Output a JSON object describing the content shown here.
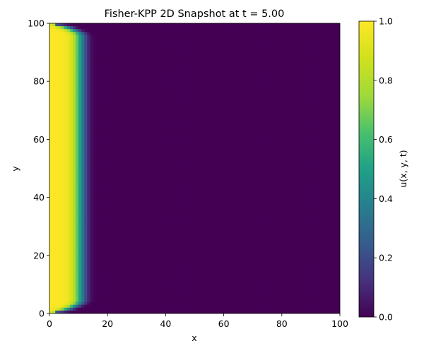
{
  "chart_data": {
    "type": "heatmap",
    "title": "Fisher-KPP 2D Snapshot at t = 5.00",
    "xlabel": "x",
    "ylabel": "y",
    "xlim": [
      0,
      100
    ],
    "ylim": [
      0,
      100
    ],
    "x_ticks": [
      "0",
      "20",
      "40",
      "60",
      "80",
      "100"
    ],
    "y_ticks": [
      "0",
      "20",
      "40",
      "60",
      "80",
      "100"
    ],
    "x_tick_values": [
      0,
      20,
      40,
      60,
      80,
      100
    ],
    "y_tick_values": [
      0,
      20,
      40,
      60,
      80,
      100
    ],
    "colormap": "viridis",
    "colorbar": {
      "label": "u(x, y, t)",
      "range": [
        0.0,
        1.0
      ],
      "ticks": [
        "0.0",
        "0.2",
        "0.4",
        "0.6",
        "0.8",
        "1.0"
      ],
      "tick_values": [
        0.0,
        0.2,
        0.4,
        0.6,
        0.8,
        1.0
      ]
    },
    "grid": false,
    "field": {
      "description_of_values": "u ≈ 1 for x < ~8, smooth front to u ≈ 0 by x ≈ 14; front slightly receded near y = 0 and y = 100 edges",
      "x_profile": [
        [
          0,
          1.0
        ],
        [
          2,
          1.0
        ],
        [
          4,
          0.99
        ],
        [
          6,
          0.97
        ],
        [
          7,
          0.93
        ],
        [
          8,
          0.86
        ],
        [
          9,
          0.74
        ],
        [
          10,
          0.58
        ],
        [
          11,
          0.42
        ],
        [
          12,
          0.27
        ],
        [
          13,
          0.14
        ],
        [
          14,
          0.05
        ],
        [
          15,
          0.01
        ],
        [
          16,
          0.0
        ],
        [
          100,
          0.0
        ]
      ],
      "edge_profile": [
        [
          0,
          0.9
        ],
        [
          1,
          0.7
        ],
        [
          2,
          0.4
        ],
        [
          3,
          0.15
        ],
        [
          4,
          0.0
        ]
      ]
    }
  }
}
